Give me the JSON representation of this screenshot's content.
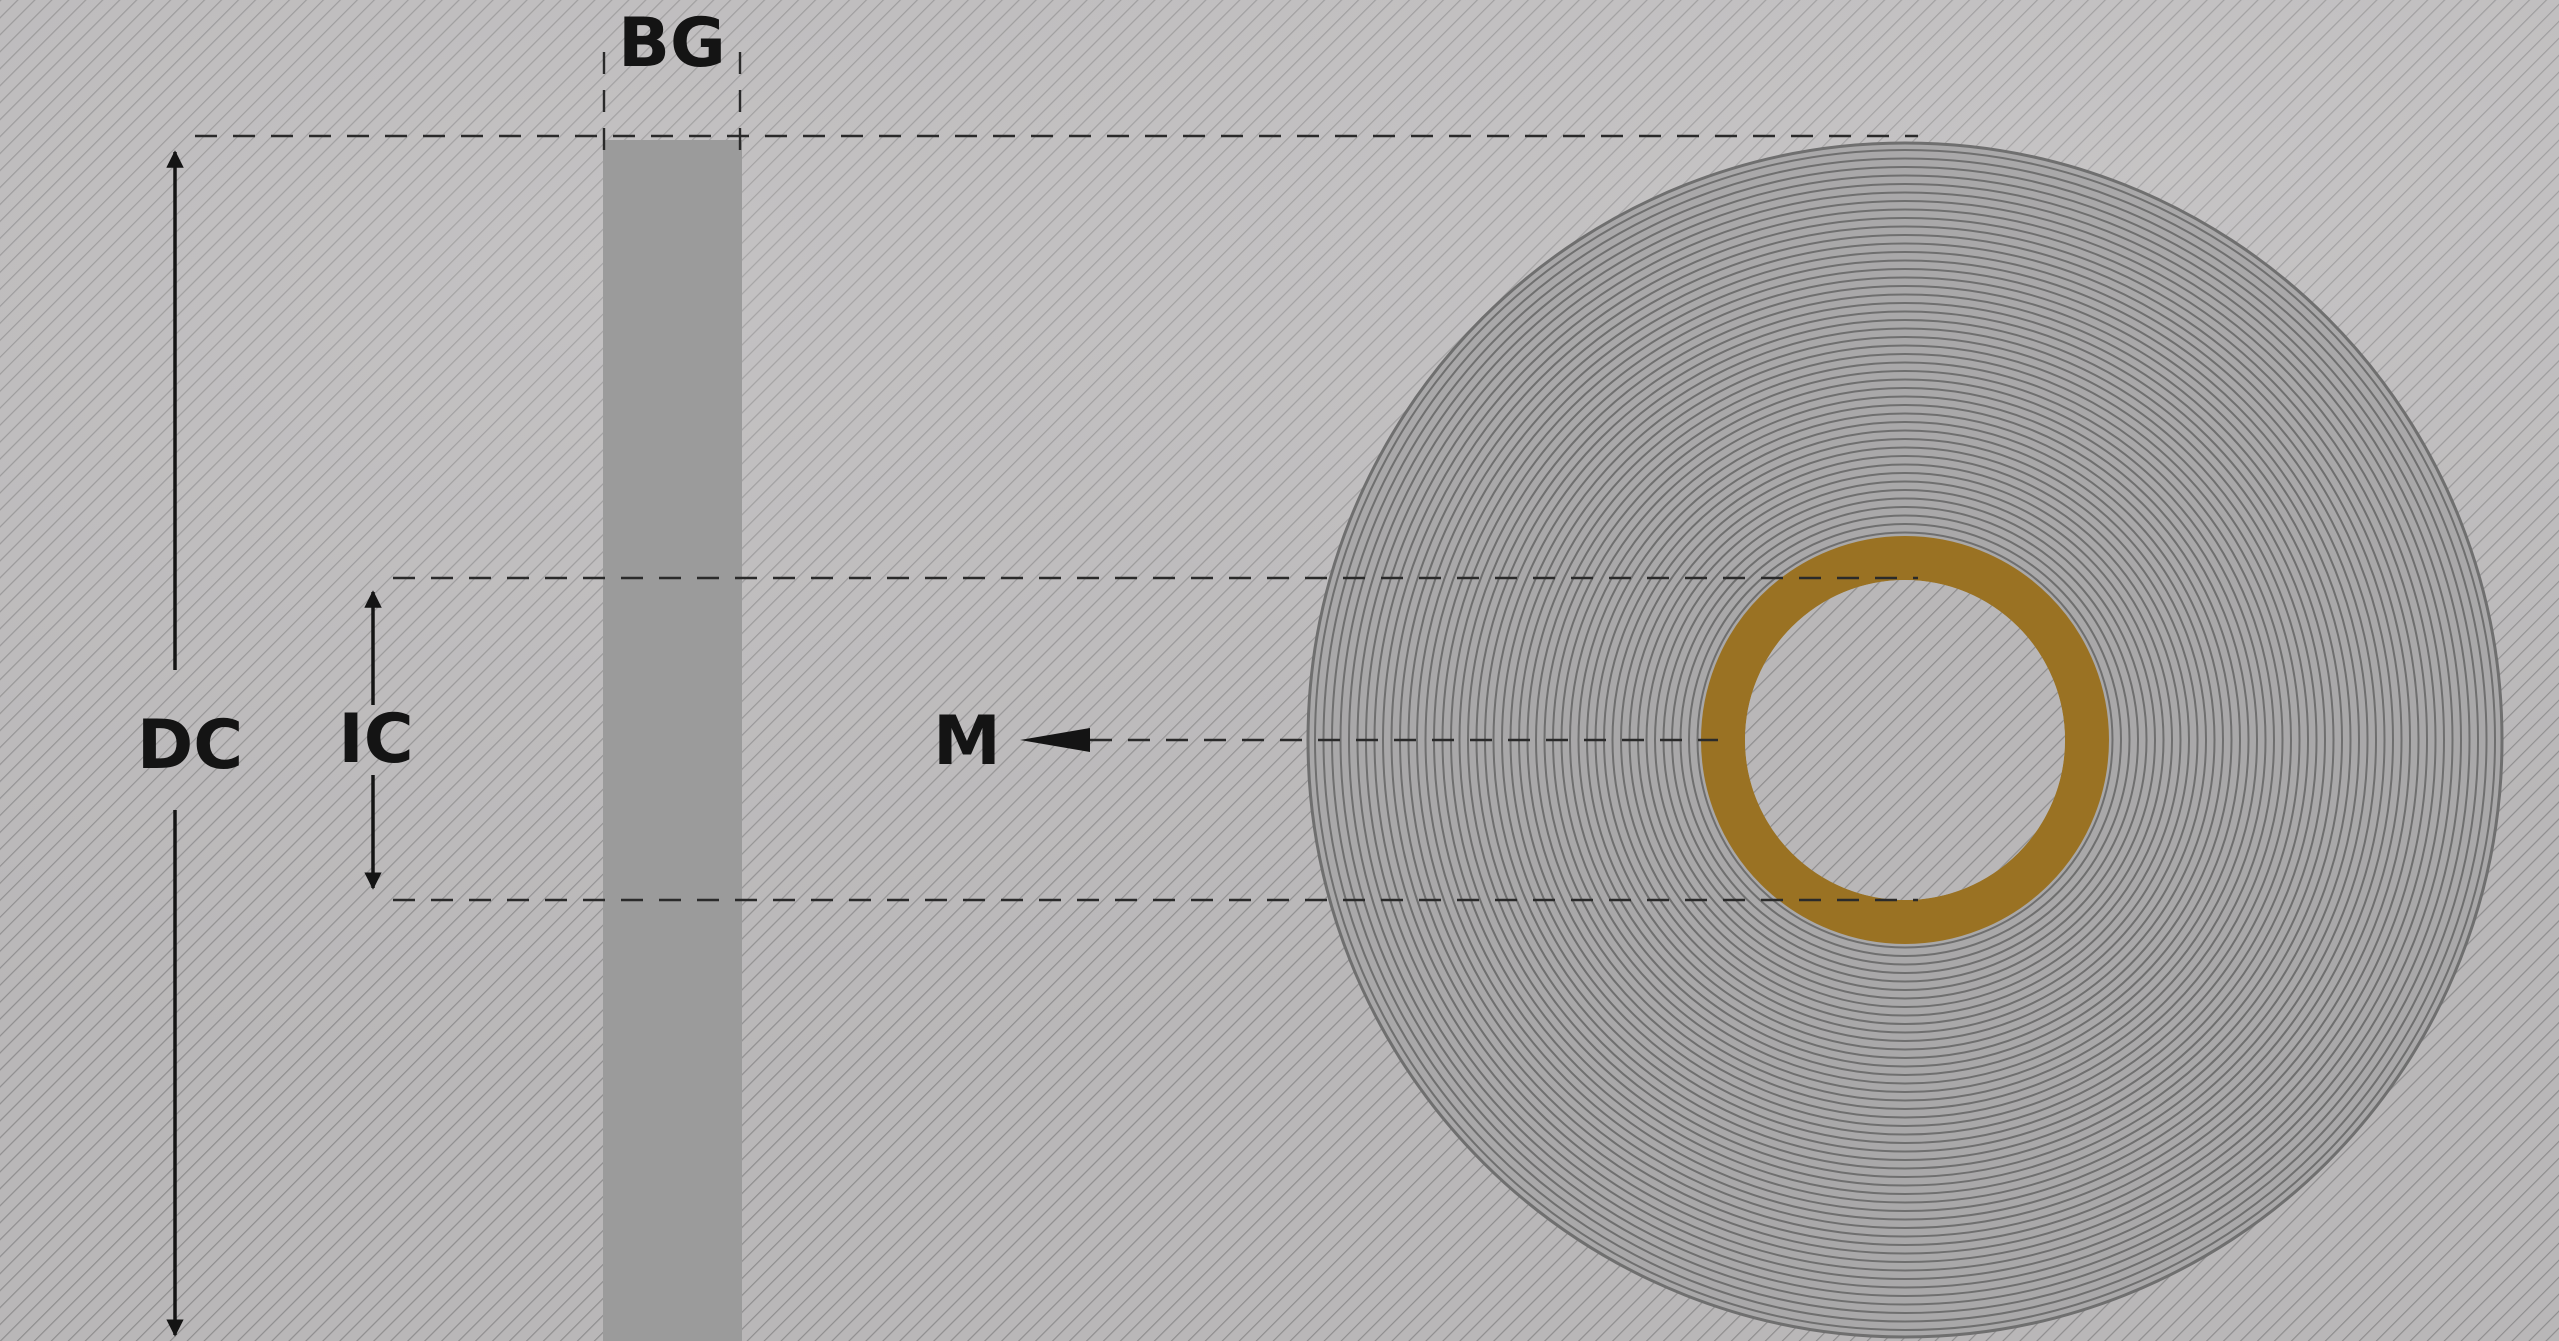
{
  "labels": {
    "bg": "BG",
    "dc": "DC",
    "ic": "IC",
    "m": "M"
  },
  "colors": {
    "background": "#b8b6b7",
    "hatch": "#8e8d8e",
    "strip": "#9b9b9b",
    "roll_winding": "#6f6f6f",
    "core": "#9a7223",
    "dimension_lines": "#2a2a2a",
    "text": "#141414"
  }
}
